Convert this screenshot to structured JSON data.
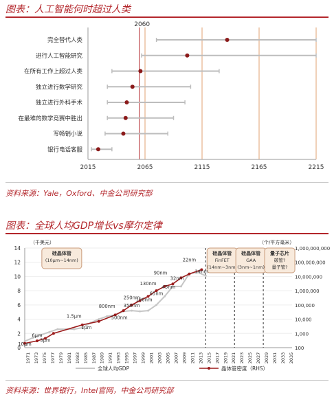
{
  "section1": {
    "title": "图表：人工智能何时超过人类",
    "source": "资料来源：Yale，Oxford、中金公司研究部"
  },
  "section2": {
    "title": "图表：全球人均GDP增长vs摩尔定律",
    "source": "资料来源：世界银行，Intel官网，中金公司研究部"
  },
  "colors": {
    "accent": "#b3262b",
    "marker": "#8b1a1a",
    "whisker": "#bdbdbd",
    "vline": "#e0a070",
    "gdp_line": "#c6c6c6",
    "transistor_line": "#9b1c1c",
    "box_fill": "#f8eadc",
    "box_border": "#c89a7a"
  },
  "chart_data": [
    {
      "type": "scatter",
      "title": "",
      "xlim": [
        2015,
        2215
      ],
      "xticks": [
        "2015",
        "2065",
        "2115",
        "2165",
        "2215"
      ],
      "reference_line_label": "2060",
      "reference_line": 2060,
      "categories": [
        "完全替代人类",
        "进行人工智能研究",
        "在所有工作上超过人类",
        "独立进行数学研究",
        "独立进行外科手术",
        "在最难的数学竞赛中胜出",
        "写畅销小说",
        "银行电话客服"
      ],
      "points": [
        {
          "median": 2137,
          "low": 2075,
          "high": 2215
        },
        {
          "median": 2102,
          "low": 2062,
          "high": 2215
        },
        {
          "median": 2061,
          "low": 2036,
          "high": 2130
        },
        {
          "median": 2054,
          "low": 2032,
          "high": 2105
        },
        {
          "median": 2049,
          "low": 2032,
          "high": 2100
        },
        {
          "median": 2048,
          "low": 2032,
          "high": 2090
        },
        {
          "median": 2046,
          "low": 2030,
          "high": 2085
        },
        {
          "median": 2024,
          "low": 2018,
          "high": 2036
        }
      ]
    },
    {
      "type": "line",
      "y_left_label": "（千美元）",
      "y_left_ticks": [
        "0",
        "2",
        "4",
        "6",
        "8",
        "10",
        "12",
        "14"
      ],
      "ylim_left": [
        0,
        14
      ],
      "y_right_label": "（个/平方毫米）",
      "y_right_ticks": [
        "100",
        "1,000",
        "10,000",
        "100,000",
        "1,000,000",
        "10,000,000",
        "100,000,000",
        "1,000,000,000"
      ],
      "ylim_right": [
        100,
        1000000000
      ],
      "x_ticks": [
        "1971",
        "1973",
        "1975",
        "1977",
        "1979",
        "1981",
        "1983",
        "1985",
        "1987",
        "1989",
        "1991",
        "1993",
        "1995",
        "1997",
        "1999",
        "2001",
        "2003",
        "2005",
        "2007",
        "2009",
        "2011",
        "2013",
        "2015",
        "2017",
        "2019",
        "2021",
        "2023",
        "2025",
        "2027",
        "2029",
        "2031",
        "2033",
        "2035"
      ],
      "xlim": [
        1971,
        2036
      ],
      "series": [
        {
          "name": "全球人均GDP",
          "x": [
            1971,
            1973,
            1975,
            1977,
            1979,
            1981,
            1983,
            1985,
            1987,
            1989,
            1991,
            1993,
            1995,
            1997,
            1999,
            2001,
            2003,
            2005,
            2007,
            2009,
            2011,
            2013,
            2015
          ],
          "values": [
            0.9,
            1.4,
            1.8,
            2.2,
            2.6,
            2.6,
            2.6,
            2.8,
            3.5,
            4.0,
            4.4,
            4.6,
            5.1,
            5.2,
            5.1,
            5.2,
            6.0,
            7.2,
            8.6,
            8.6,
            10.4,
            10.6,
            10.1
          ]
        },
        {
          "name": "晶体管密度（RHS）",
          "x": [
            1971,
            1974,
            1976,
            1978,
            1985,
            1989,
            1993,
            1995,
            1997,
            1999,
            2001,
            2003,
            2005,
            2007,
            2009,
            2011,
            2014
          ],
          "values": [
            200,
            300,
            450,
            1000,
            4000,
            7000,
            20000,
            40000,
            100000,
            200000,
            400000,
            1000000,
            2000000,
            3000000,
            8000000,
            15000000,
            30000000
          ]
        }
      ],
      "node_labels": [
        {
          "text": "10μm",
          "x": 1971,
          "y": 0.3
        },
        {
          "text": "6μm",
          "x": 1974,
          "y": 1.5
        },
        {
          "text": "3μm",
          "x": 1976,
          "y": 0.8
        },
        {
          "text": "1.5μm",
          "x": 1983,
          "y": 4.2
        },
        {
          "text": "1μm",
          "x": 1986,
          "y": 2.6
        },
        {
          "text": "800nm",
          "x": 1991,
          "y": 5.6
        },
        {
          "text": "500nm",
          "x": 1994,
          "y": 4.0
        },
        {
          "text": "350nm",
          "x": 1997,
          "y": 5.7
        },
        {
          "text": "250nm",
          "x": 1997,
          "y": 6.8
        },
        {
          "text": "180nm",
          "x": 2000,
          "y": 6.5
        },
        {
          "text": "130nm",
          "x": 2001,
          "y": 8.8
        },
        {
          "text": "90nm",
          "x": 2004,
          "y": 10.3
        },
        {
          "text": "65nm",
          "x": 2003,
          "y": 7.4
        },
        {
          "text": "45nm",
          "x": 2006,
          "y": 8.3
        },
        {
          "text": "32nm",
          "x": 2008,
          "y": 9.5
        },
        {
          "text": "22nm",
          "x": 2011,
          "y": 12.1
        },
        {
          "text": "14nm",
          "x": 2014,
          "y": 10.5
        }
      ],
      "era_boxes": [
        {
          "title": "硅晶体管",
          "subtitle": "(10μm~14nm)",
          "x": 1980
        },
        {
          "title": "硅晶体管",
          "subtitle": "FinFET",
          "detail": "(14nm~3nm)",
          "x": 2019
        },
        {
          "title": "硅晶体管",
          "subtitle": "GAA",
          "detail": "(3nm~1nm)",
          "x": 2026
        },
        {
          "title": "量子芯片",
          "subtitle": "碳管?",
          "detail": "量子管?",
          "x": 2033
        }
      ],
      "era_dividers": [
        2015,
        2022,
        2029
      ],
      "legend": [
        "全球人均GDP",
        "晶体管密度（RHS）"
      ]
    }
  ]
}
